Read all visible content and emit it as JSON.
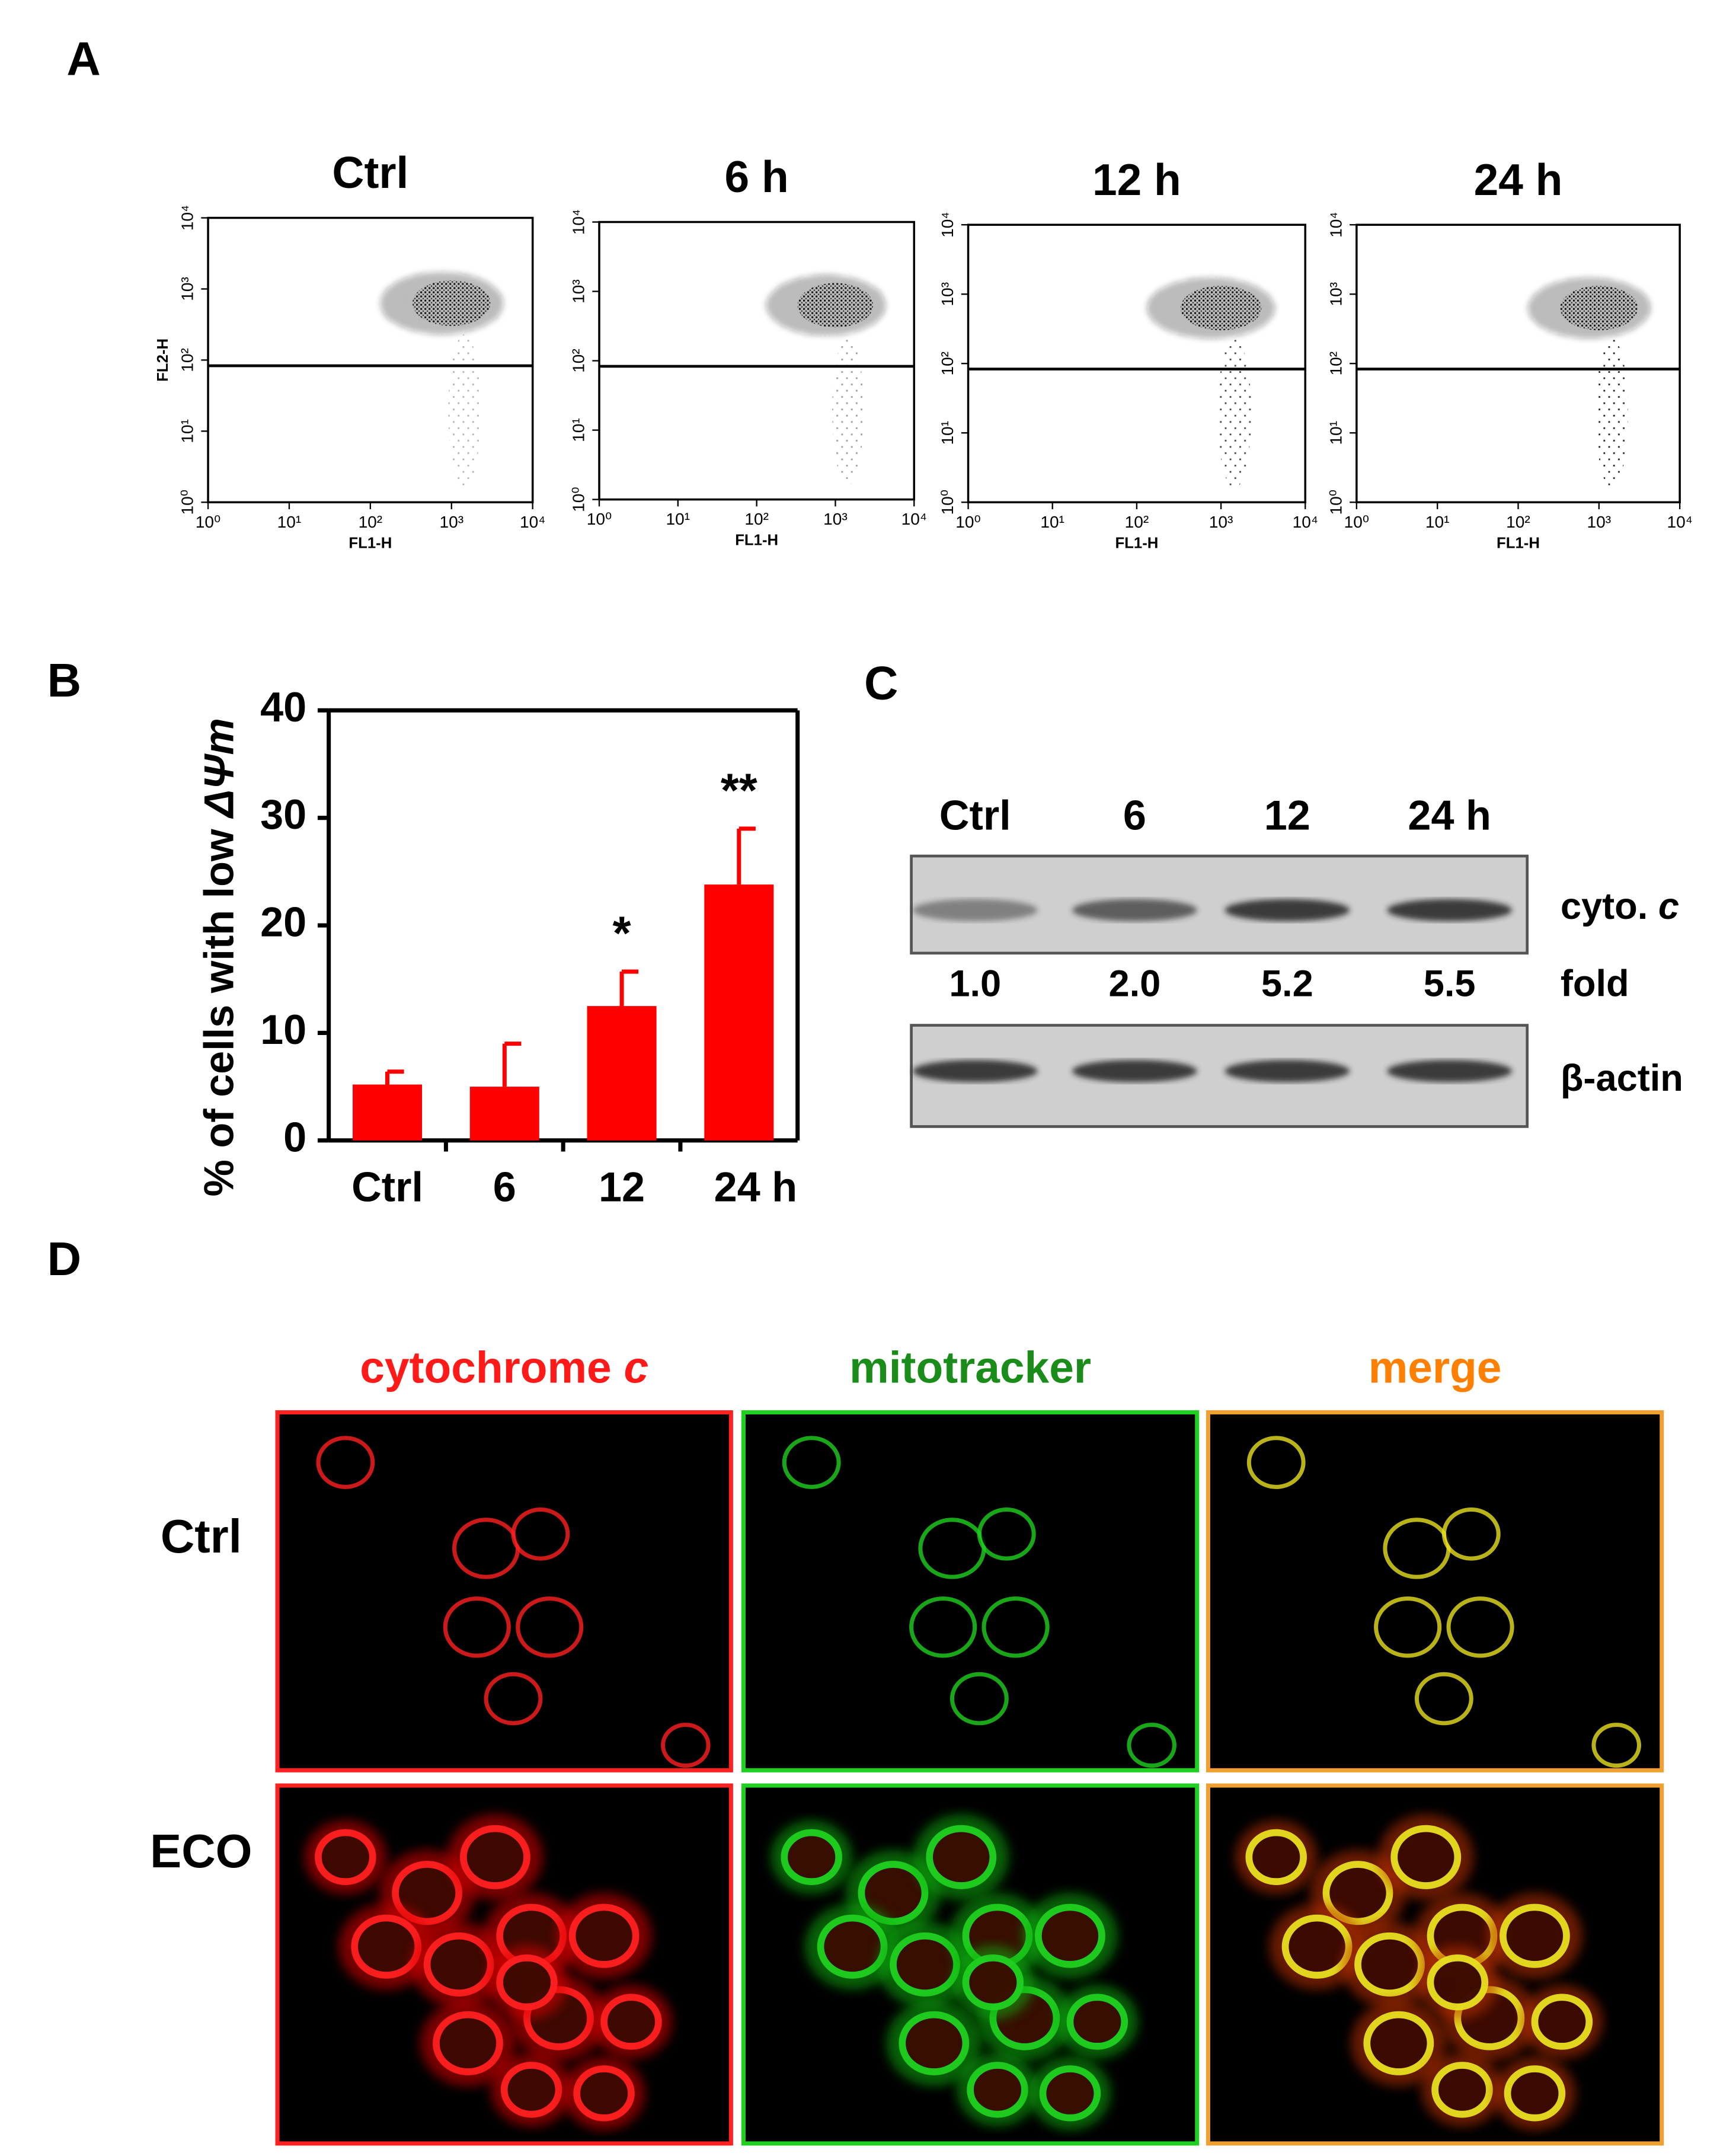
{
  "panel_labels": [
    "A",
    "B",
    "C",
    "D"
  ],
  "flow": {
    "titles": [
      "Ctrl",
      "6 h",
      "12 h",
      "24 h"
    ],
    "x_label": "FL1-H",
    "y_label": "FL2-H",
    "tick_labels": [
      "10⁰",
      "10¹",
      "10²",
      "10³",
      "10⁴"
    ]
  },
  "chart_data": {
    "type": "bar",
    "ylabel": {
      "text": "% of cells with low ",
      "italic": "ΔΨm"
    },
    "categories": [
      "Ctrl",
      "6",
      "12",
      "24 h"
    ],
    "values": [
      5.2,
      5.0,
      12.5,
      23.8
    ],
    "errors": [
      1.2,
      4.0,
      3.2,
      5.2
    ],
    "annotations": [
      null,
      null,
      "*",
      "**"
    ],
    "color": "#ff0000",
    "ylim": [
      0,
      40
    ],
    "yticks": [
      0,
      10,
      20,
      30,
      40
    ]
  },
  "blot": {
    "lanes": [
      "Ctrl",
      "6",
      "12",
      "24 h"
    ],
    "fold_values": [
      "1.0",
      "2.0",
      "5.2",
      "5.5"
    ],
    "labels": {
      "cyto": {
        "text": "cyto. ",
        "italic": "c"
      },
      "fold": "fold",
      "actin": "β-actin"
    }
  },
  "microscopy": {
    "columns": [
      {
        "text": "cytochrome ",
        "italic": "c"
      },
      {
        "text": "mitotracker"
      },
      {
        "text": "merge"
      }
    ],
    "rows": [
      "Ctrl",
      "ECO"
    ]
  }
}
